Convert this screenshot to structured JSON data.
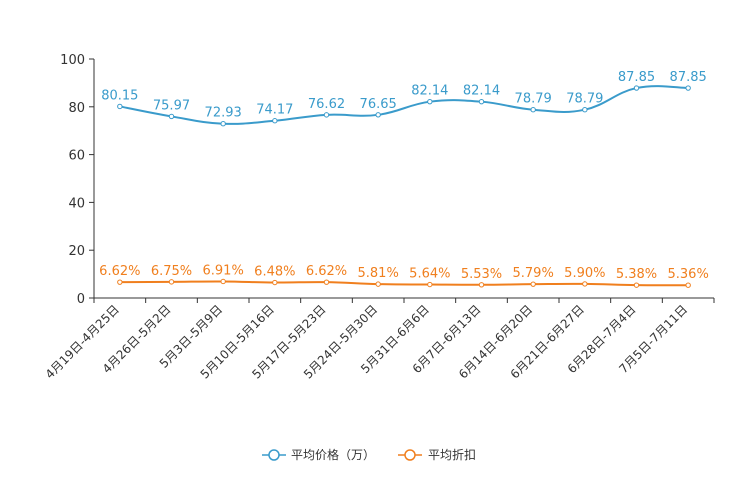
{
  "chart_data": {
    "type": "line",
    "categories": [
      "4月19日-4月25日",
      "4月26日-5月2日",
      "5月3日-5月9日",
      "5月10日-5月16日",
      "5月17日-5月23日",
      "5月24日-5月30日",
      "5月31日-6月6日",
      "6月7日-6月13日",
      "6月14日-6月20日",
      "6月21日-6月27日",
      "6月28日-7月4日",
      "7月5日-7月11日"
    ],
    "series": [
      {
        "name": "平均价格（万）",
        "color": "#3a9bcb",
        "values": [
          80.15,
          75.97,
          72.93,
          74.17,
          76.62,
          76.65,
          82.14,
          82.14,
          78.79,
          78.79,
          87.85,
          87.85
        ],
        "labels": [
          "80.15",
          "75.97",
          "72.93",
          "74.17",
          "76.62",
          "76.65",
          "82.14",
          "82.14",
          "78.79",
          "78.79",
          "87.85",
          "87.85"
        ]
      },
      {
        "name": "平均折扣",
        "color": "#f07f1e",
        "values": [
          6.62,
          6.75,
          6.91,
          6.48,
          6.62,
          5.81,
          5.64,
          5.53,
          5.79,
          5.9,
          5.38,
          5.36
        ],
        "labels": [
          "6.62%",
          "6.75%",
          "6.91%",
          "6.48%",
          "6.62%",
          "5.81%",
          "5.64%",
          "5.53%",
          "5.79%",
          "5.90%",
          "5.38%",
          "5.36%"
        ]
      }
    ],
    "yticks": [
      "0",
      "20",
      "40",
      "60",
      "80",
      "100"
    ],
    "ylim": [
      0,
      100
    ],
    "title": "",
    "xlabel": "",
    "ylabel": "",
    "legend_position": "bottom-center",
    "grid": false
  }
}
